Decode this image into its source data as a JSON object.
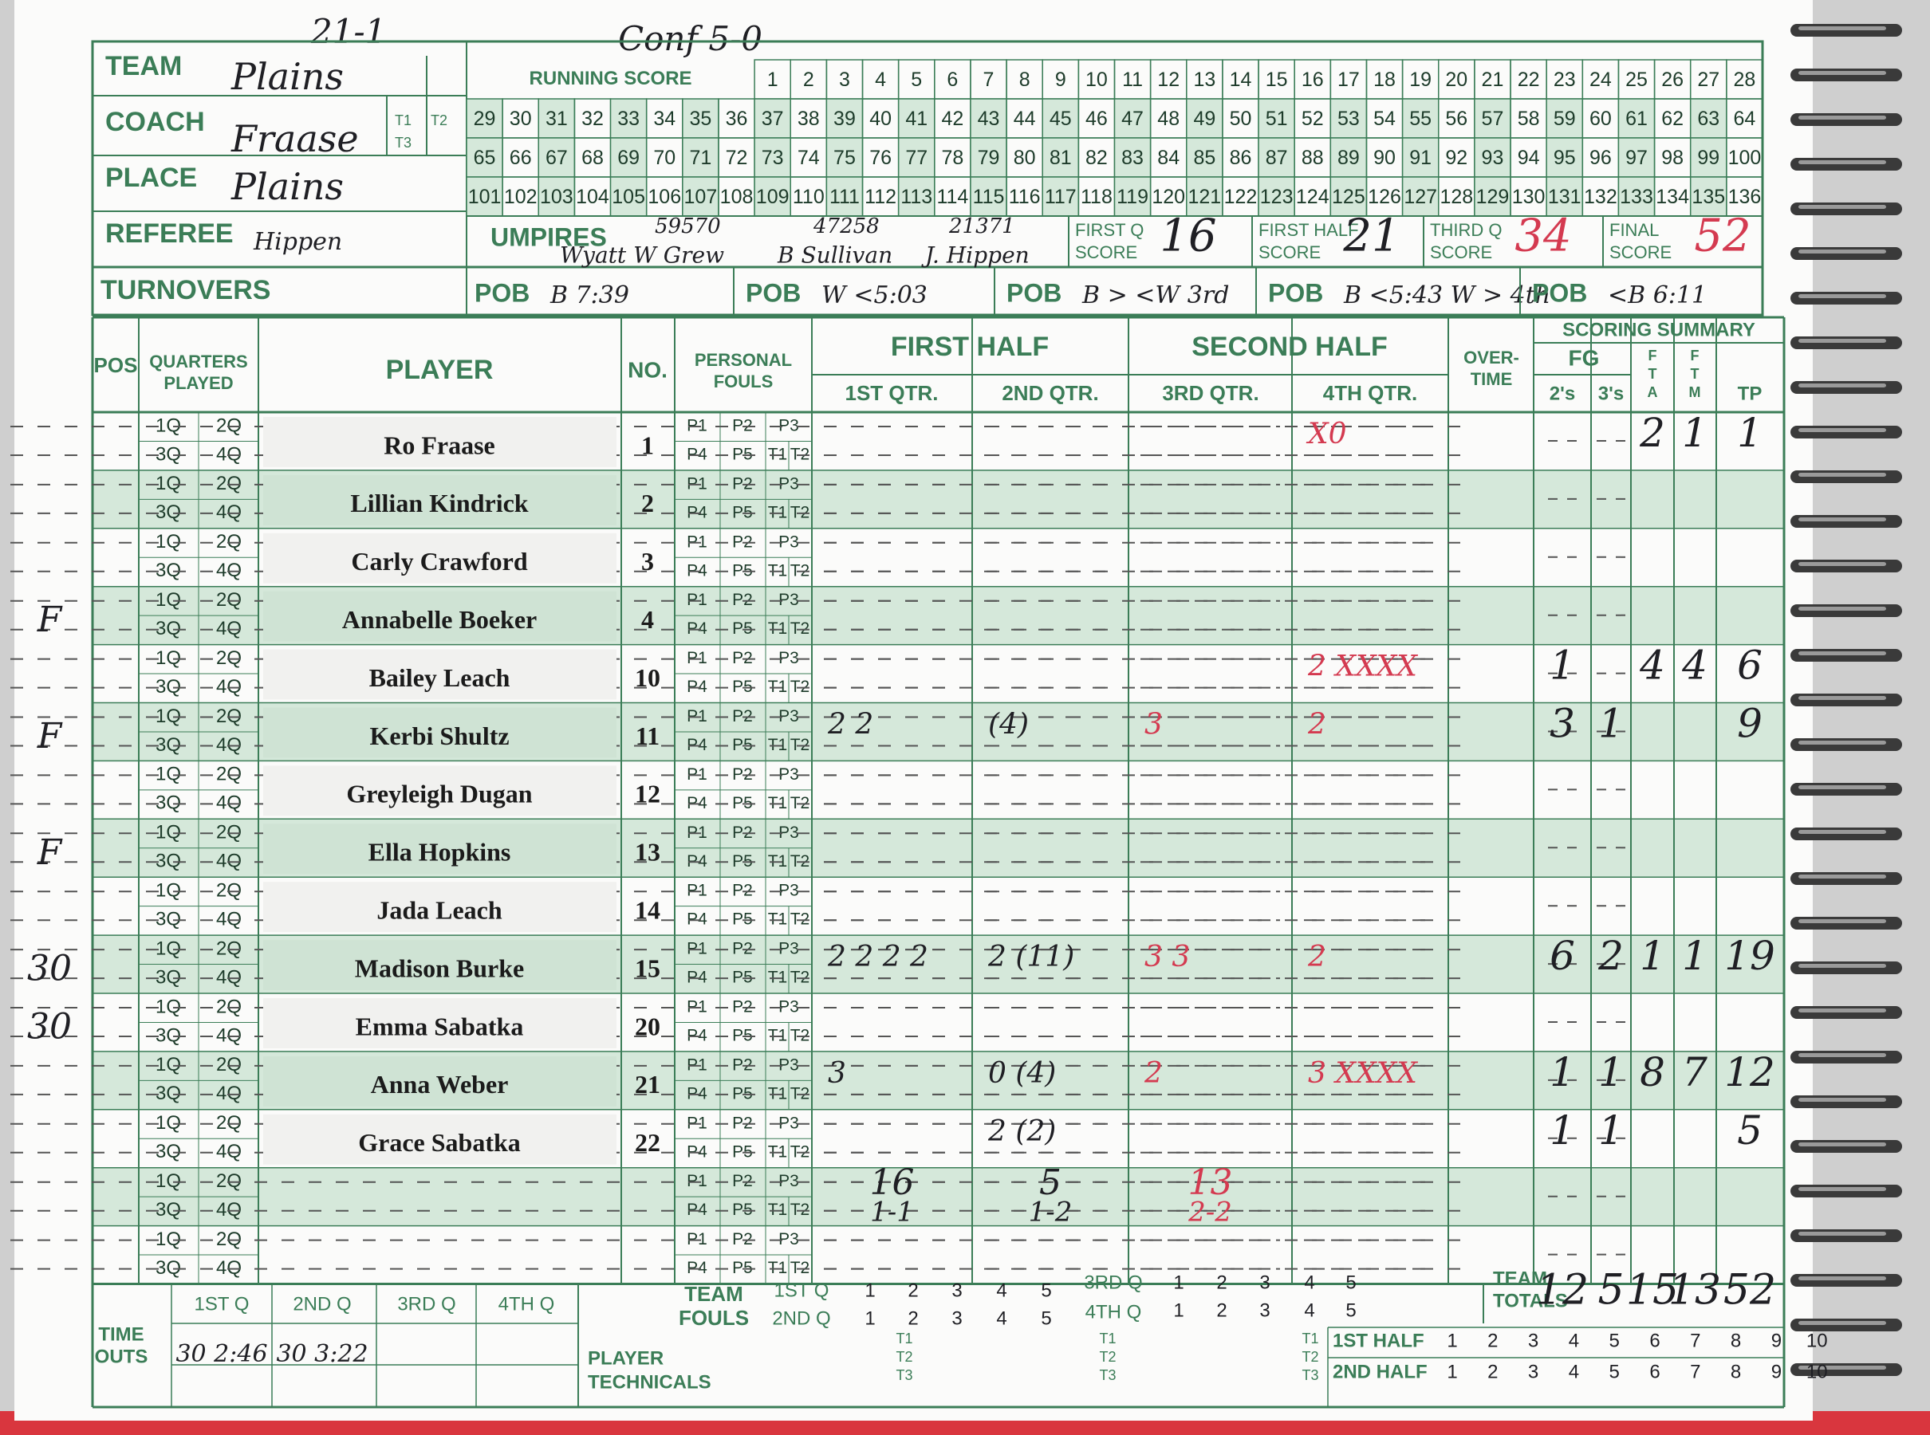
{
  "header": {
    "record": "21-1",
    "conference": "Conf 5-0",
    "team_label": "TEAM",
    "team": "Plains",
    "coach_label": "COACH",
    "coach": "Fraase",
    "place_label": "PLACE",
    "place": "Plains",
    "referee_label": "REFEREE",
    "referee": "Hippen",
    "turnovers_label": "TURNOVERS",
    "t_labels": [
      "T1",
      "T2",
      "T3"
    ]
  },
  "running_score": {
    "title": "RUNNING SCORE",
    "numbers": [
      1,
      2,
      3,
      4,
      5,
      6,
      7,
      8,
      9,
      10,
      11,
      12,
      13,
      14,
      15,
      16,
      17,
      18,
      19,
      20,
      21,
      22,
      23,
      24,
      25,
      26,
      27,
      28,
      29,
      30,
      31,
      32,
      33,
      34,
      35,
      36,
      37,
      38,
      39,
      40,
      41,
      42,
      43,
      44,
      45,
      46,
      47,
      48,
      49,
      50,
      51,
      52,
      53,
      54,
      55,
      56,
      57,
      58,
      59,
      60,
      61,
      62,
      63,
      64,
      65,
      66,
      67,
      68,
      69,
      70,
      71,
      72,
      73,
      74,
      75,
      76,
      77,
      78,
      79,
      80,
      81,
      82,
      83,
      84,
      85,
      86,
      87,
      88,
      89,
      90,
      91,
      92,
      93,
      94,
      95,
      96,
      97,
      98,
      99,
      100,
      101,
      102,
      103,
      104,
      105,
      106,
      107,
      108,
      109,
      110,
      111,
      112,
      113,
      114,
      115,
      116,
      117,
      118,
      119,
      120,
      121,
      122,
      123,
      124,
      125,
      126,
      127,
      128,
      129,
      130,
      131,
      132,
      133,
      134,
      135,
      136
    ]
  },
  "officials": {
    "umpires_label": "UMPIRES",
    "umpires": [
      {
        "id": "59570",
        "name": "Wyatt W Grew"
      },
      {
        "id": "47258",
        "name": "B Sullivan"
      },
      {
        "id": "21371",
        "name": "J. Hippen"
      }
    ]
  },
  "scores": [
    {
      "label": [
        "FIRST Q",
        "SCORE"
      ],
      "value": 16
    },
    {
      "label": [
        "FIRST HALF",
        "SCORE"
      ],
      "value": 21
    },
    {
      "label": [
        "THIRD Q",
        "SCORE"
      ],
      "value": 34
    },
    {
      "label": [
        "FINAL",
        "SCORE"
      ],
      "value": 52
    }
  ],
  "possession": [
    {
      "label": "POB",
      "note": "B 7:39"
    },
    {
      "label": "POB",
      "note": "W <5:03"
    },
    {
      "label": "POB",
      "note": "B > <W 3rd"
    },
    {
      "label": "POB",
      "note": "B <5:43 W > 4th"
    },
    {
      "label": "POB",
      "note": "<B 6:11"
    }
  ],
  "table": {
    "headers": {
      "pos": "POS",
      "quarters_played": [
        "QUARTERS",
        "PLAYED"
      ],
      "player": "PLAYER",
      "no": "NO.",
      "fouls": [
        "PERSONAL",
        "FOULS"
      ],
      "first_half": "FIRST HALF",
      "second_half": "SECOND HALF",
      "quarters": [
        "1ST QTR.",
        "2ND QTR.",
        "3RD QTR.",
        "4TH QTR."
      ],
      "overtime": [
        "OVER-",
        "TIME"
      ],
      "scoring_summary": "SCORING SUMMARY",
      "fg": "FG",
      "twos": "2's",
      "threes": "3's",
      "fta": [
        "F",
        "T",
        "A"
      ],
      "ftm": [
        "F",
        "T",
        "M"
      ],
      "tp": "TP"
    },
    "quarter_labels": [
      "1Q",
      "2Q",
      "3Q",
      "4Q"
    ],
    "foul_labels": [
      "P1",
      "P2",
      "P3",
      "P4",
      "P5",
      "T1",
      "T2"
    ],
    "players": [
      {
        "name": "Ro Fraase",
        "no": 1,
        "pos": null,
        "q": [
          null,
          null,
          null,
          "X0"
        ],
        "fg2": null,
        "fg3": null,
        "fta": 2,
        "ftm": 1,
        "tp": 1
      },
      {
        "name": "Lillian Kindrick",
        "no": 2,
        "pos": null,
        "q": [
          null,
          null,
          null,
          null
        ],
        "fg2": null,
        "fg3": null,
        "fta": null,
        "ftm": null,
        "tp": null
      },
      {
        "name": "Carly Crawford",
        "no": 3,
        "pos": null,
        "q": [
          null,
          null,
          null,
          null
        ],
        "fg2": null,
        "fg3": null,
        "fta": null,
        "ftm": null,
        "tp": null
      },
      {
        "name": "Annabelle Boeker",
        "no": 4,
        "pos": "F",
        "q": [
          null,
          null,
          null,
          null
        ],
        "fg2": null,
        "fg3": null,
        "fta": null,
        "ftm": null,
        "tp": null
      },
      {
        "name": "Bailey Leach",
        "no": 10,
        "pos": null,
        "q": [
          null,
          null,
          null,
          "2 XXXX"
        ],
        "fg2": 1,
        "fg3": null,
        "fta": 4,
        "ftm": 4,
        "tp": 6
      },
      {
        "name": "Kerbi Shultz",
        "no": 11,
        "pos": "F",
        "q": [
          "2 2",
          "(4)",
          "3",
          "2"
        ],
        "fg2": 3,
        "fg3": 1,
        "fta": null,
        "ftm": null,
        "tp": 9
      },
      {
        "name": "Greyleigh Dugan",
        "no": 12,
        "pos": null,
        "q": [
          null,
          null,
          null,
          null
        ],
        "fg2": null,
        "fg3": null,
        "fta": null,
        "ftm": null,
        "tp": null
      },
      {
        "name": "Ella Hopkins",
        "no": 13,
        "pos": "F",
        "q": [
          null,
          null,
          null,
          null
        ],
        "fg2": null,
        "fg3": null,
        "fta": null,
        "ftm": null,
        "tp": null
      },
      {
        "name": "Jada Leach",
        "no": 14,
        "pos": null,
        "q": [
          null,
          null,
          null,
          null
        ],
        "fg2": null,
        "fg3": null,
        "fta": null,
        "ftm": null,
        "tp": null
      },
      {
        "name": "Madison Burke",
        "no": 15,
        "pos": "30",
        "q": [
          "2 2 2 2",
          "2 (11)",
          "3 3",
          "2"
        ],
        "fg2": 6,
        "fg3": 2,
        "fta": 1,
        "ftm": 1,
        "tp": 19
      },
      {
        "name": "Emma Sabatka",
        "no": 20,
        "pos": "30",
        "q": [
          null,
          null,
          null,
          null
        ],
        "fg2": null,
        "fg3": null,
        "fta": null,
        "ftm": null,
        "tp": null
      },
      {
        "name": "Anna Weber",
        "no": 21,
        "pos": null,
        "q": [
          "3",
          "0 (4)",
          "2",
          "3 XXXX"
        ],
        "fg2": 1,
        "fg3": 1,
        "fta": 8,
        "ftm": 7,
        "tp": 12
      },
      {
        "name": "Grace Sabatka",
        "no": 22,
        "pos": null,
        "q": [
          null,
          "2 (2)",
          null,
          null
        ],
        "fg2": 1,
        "fg3": 1,
        "fta": null,
        "ftm": null,
        "tp": 5
      }
    ],
    "quarter_totals": [
      {
        "points": 16,
        "ft": "1-1"
      },
      {
        "points": 5,
        "ft": "1-2"
      },
      {
        "points": 13,
        "ft": "2-2"
      }
    ],
    "team_totals": {
      "label": [
        "TEAM",
        "TOTALS"
      ],
      "fg2": 12,
      "fg3": 5,
      "fta": 15,
      "ftm": 13,
      "tp": 52
    }
  },
  "footer": {
    "time_outs_label": [
      "TIME",
      "OUTS"
    ],
    "time_out_quarters": [
      "1ST Q",
      "2ND Q",
      "3RD Q",
      "4TH Q"
    ],
    "time_outs": [
      "30 2:46",
      "30 3:22"
    ],
    "team_fouls_label": [
      "TEAM",
      "FOULS"
    ],
    "foul_quarters": [
      "1ST Q",
      "2ND Q",
      "3RD Q",
      "4TH Q"
    ],
    "foul_numbers": [
      1,
      2,
      3,
      4,
      5
    ],
    "technicals_label": [
      "PLAYER",
      "TECHNICALS"
    ],
    "halves": [
      "1ST HALF",
      "2ND HALF"
    ],
    "half_numbers": [
      1,
      2,
      3,
      4,
      5,
      6,
      7,
      8,
      9,
      10
    ]
  }
}
